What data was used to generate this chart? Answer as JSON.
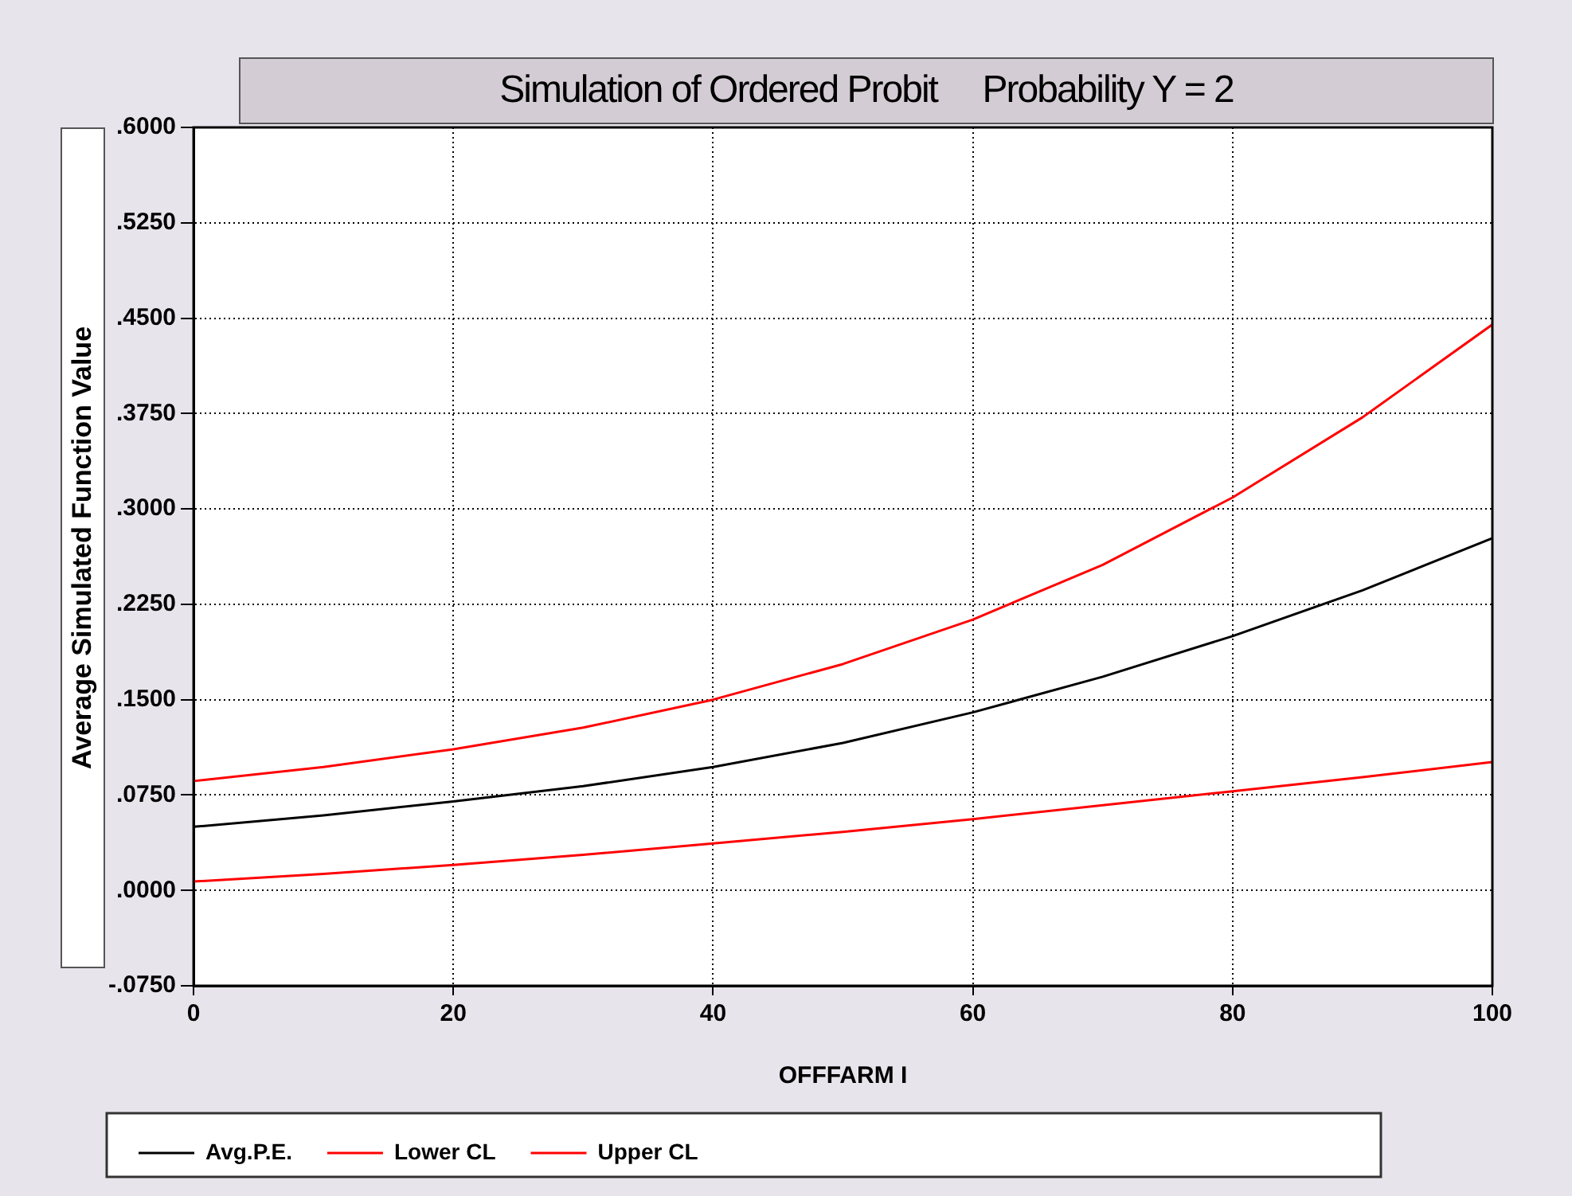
{
  "chart_data": {
    "type": "line",
    "title": "Simulation of Ordered Probit     Probability Y = 2",
    "xlabel": "OFFFARM I",
    "ylabel": "Average Simulated Function Value",
    "x": [
      0,
      10,
      20,
      30,
      40,
      50,
      60,
      70,
      80,
      90,
      100
    ],
    "series": [
      {
        "name": "Avg.P.E.",
        "color": "#000000",
        "values": [
          0.05,
          0.059,
          0.07,
          0.082,
          0.097,
          0.116,
          0.14,
          0.168,
          0.2,
          0.236,
          0.277
        ]
      },
      {
        "name": "Lower CL",
        "color": "#ff0000",
        "values": [
          0.007,
          0.013,
          0.02,
          0.028,
          0.037,
          0.046,
          0.056,
          0.067,
          0.078,
          0.089,
          0.101
        ]
      },
      {
        "name": "Upper CL",
        "color": "#ff0000",
        "values": [
          0.086,
          0.097,
          0.111,
          0.128,
          0.15,
          0.178,
          0.213,
          0.256,
          0.309,
          0.372,
          0.445
        ]
      }
    ],
    "xlim": [
      0,
      100
    ],
    "xticks": [
      0,
      20,
      40,
      60,
      80,
      100
    ],
    "ylim": [
      -0.075,
      0.6
    ],
    "yticks": [
      {
        "value": -0.075,
        "label": "-.0750"
      },
      {
        "value": 0,
        "label": ".0000"
      },
      {
        "value": 0.075,
        "label": ".0750"
      },
      {
        "value": 0.15,
        "label": ".1500"
      },
      {
        "value": 0.225,
        "label": ".2250"
      },
      {
        "value": 0.3,
        "label": ".3000"
      },
      {
        "value": 0.375,
        "label": ".3750"
      },
      {
        "value": 0.45,
        "label": ".4500"
      },
      {
        "value": 0.525,
        "label": ".5250"
      },
      {
        "value": 0.6,
        "label": ".6000"
      }
    ],
    "grid": true,
    "legend": "bottom",
    "marker": "none",
    "line_style": "solid"
  }
}
